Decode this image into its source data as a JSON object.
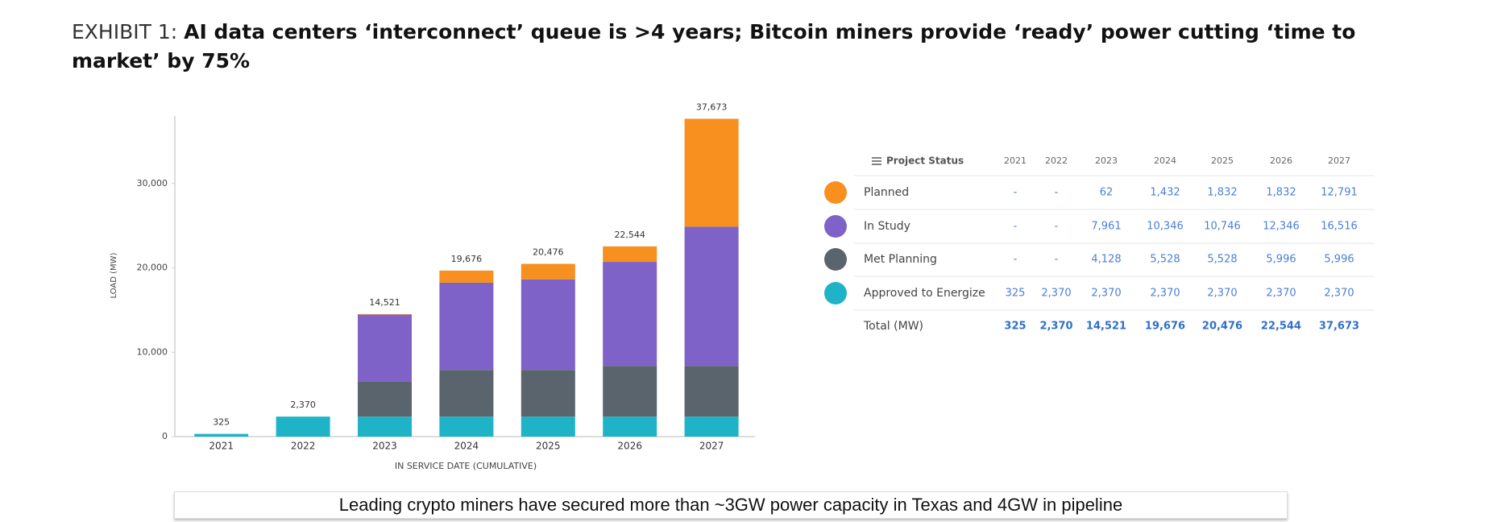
{
  "header": {
    "exhibit": "EXHIBIT 1:",
    "title": "AI data centers ‘interconnect’ queue is >4 years; Bitcoin miners provide ‘ready’ power cutting ‘time to market’ by 75%"
  },
  "chart_data": {
    "type": "stacked_bar",
    "y_label": "LOAD (MW)",
    "x_label": "IN SERVICE DATE (CUMULATIVE)",
    "table_header": "Project Status",
    "total_name": "Total (MW)",
    "categories": [
      "2021",
      "2022",
      "2023",
      "2024",
      "2025",
      "2026",
      "2027"
    ],
    "series": [
      {
        "name": "Approved to Energize",
        "color": "#1fb3c8",
        "values": [
          325,
          2370,
          2370,
          2370,
          2370,
          2370,
          2370
        ],
        "value_labels": [
          "325",
          "2,370",
          "2,370",
          "2,370",
          "2,370",
          "2,370",
          "2,370"
        ]
      },
      {
        "name": "Met Planning",
        "color": "#5a646c",
        "values": [
          null,
          null,
          4128,
          5528,
          5528,
          5996,
          5996
        ],
        "value_labels": [
          "-",
          "-",
          "4,128",
          "5,528",
          "5,528",
          "5,996",
          "5,996"
        ]
      },
      {
        "name": "In Study",
        "color": "#7e62c8",
        "values": [
          null,
          null,
          7961,
          10346,
          10746,
          12346,
          16516
        ],
        "value_labels": [
          "-",
          "-",
          "7,961",
          "10,346",
          "10,746",
          "12,346",
          "16,516"
        ]
      },
      {
        "name": "Planned",
        "color": "#f7901e",
        "values": [
          null,
          null,
          62,
          1432,
          1832,
          1832,
          12791
        ],
        "value_labels": [
          "-",
          "-",
          "62",
          "1,432",
          "1,832",
          "1,832",
          "12,791"
        ]
      }
    ],
    "totals": [
      325,
      2370,
      14521,
      19676,
      20476,
      22544,
      37673
    ],
    "total_labels": [
      "325",
      "2,370",
      "14,521",
      "19,676",
      "20,476",
      "22,544",
      "37,673"
    ],
    "ylim": [
      0,
      38000
    ],
    "yticks": [
      0,
      {
        "value": 10000,
        "label": "10,000"
      },
      {
        "value": 20000,
        "label": "20,000"
      },
      {
        "value": 30000,
        "label": "30,000"
      }
    ],
    "grid": false
  },
  "footer": {
    "caption": "Leading crypto miners have secured more than ~3GW power capacity in Texas and 4GW in pipeline"
  }
}
